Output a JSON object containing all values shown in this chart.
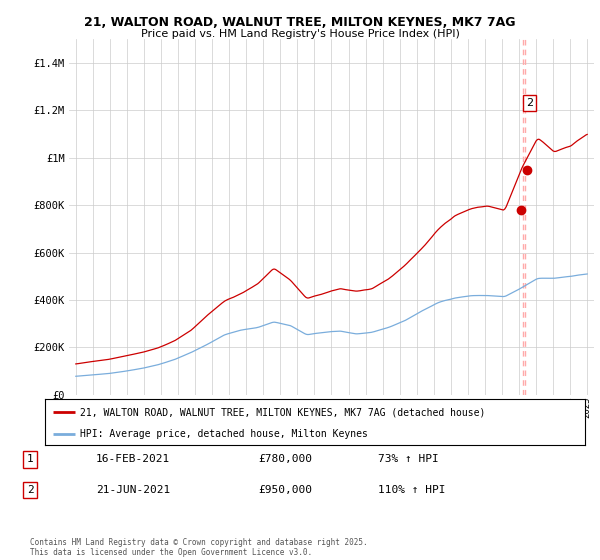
{
  "title1": "21, WALTON ROAD, WALNUT TREE, MILTON KEYNES, MK7 7AG",
  "title2": "Price paid vs. HM Land Registry's House Price Index (HPI)",
  "legend_line1": "21, WALTON ROAD, WALNUT TREE, MILTON KEYNES, MK7 7AG (detached house)",
  "legend_line2": "HPI: Average price, detached house, Milton Keynes",
  "annotation1_label": "1",
  "annotation1_date": "16-FEB-2021",
  "annotation1_price": "£780,000",
  "annotation1_hpi": "73% ↑ HPI",
  "annotation2_label": "2",
  "annotation2_date": "21-JUN-2021",
  "annotation2_price": "£950,000",
  "annotation2_hpi": "110% ↑ HPI",
  "copyright": "Contains HM Land Registry data © Crown copyright and database right 2025.\nThis data is licensed under the Open Government Licence v3.0.",
  "red_color": "#cc0000",
  "blue_color": "#7aaddc",
  "vline_color": "#ffaaaa",
  "background_color": "#ffffff",
  "grid_color": "#cccccc",
  "ylim": [
    0,
    1500000
  ],
  "yticks": [
    0,
    200000,
    400000,
    600000,
    800000,
    1000000,
    1200000,
    1400000
  ],
  "ytick_labels": [
    "£0",
    "£200K",
    "£400K",
    "£600K",
    "£800K",
    "£1M",
    "£1.2M",
    "£1.4M"
  ],
  "sale1_year": 2021.12,
  "sale1_price": 780000,
  "sale2_year": 2021.47,
  "sale2_price": 950000,
  "vline_x": 2021.3
}
